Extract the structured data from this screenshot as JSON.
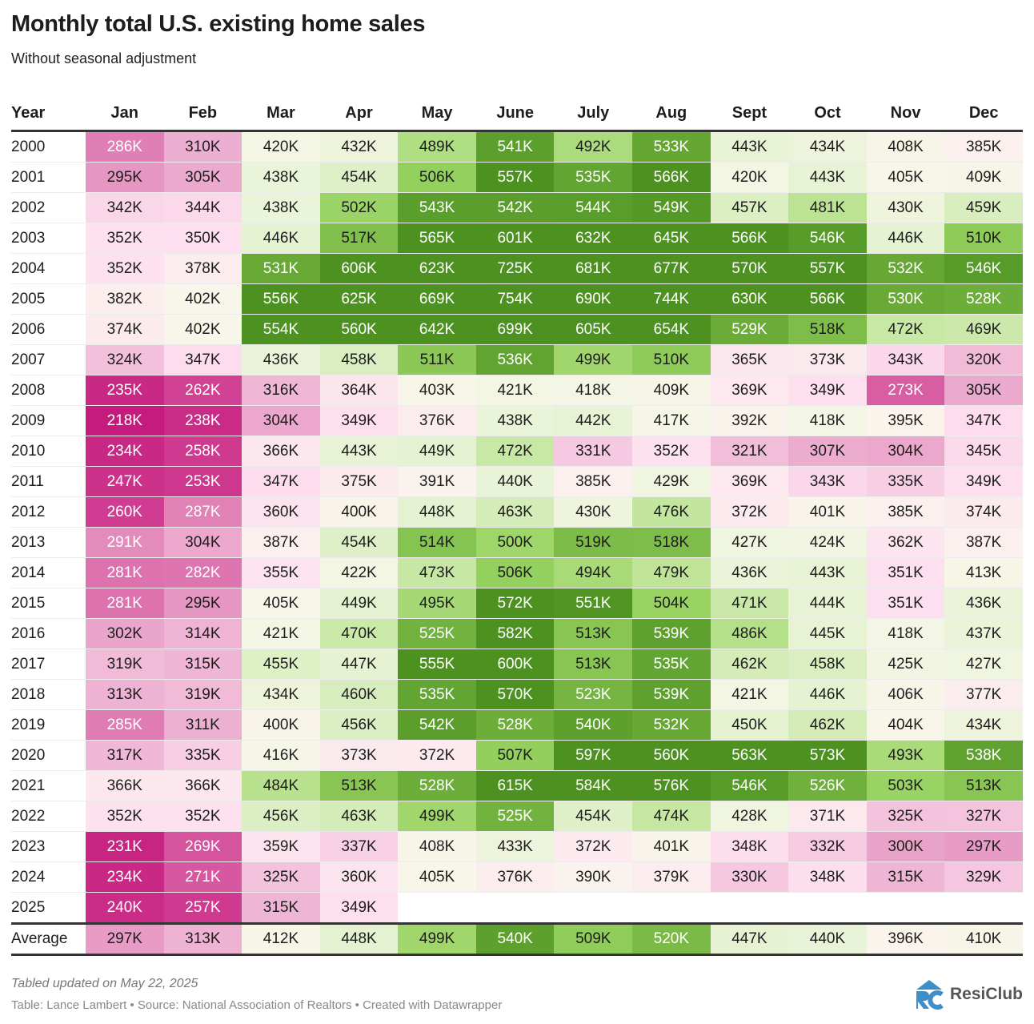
{
  "title": "Monthly total U.S. existing home sales",
  "subtitle": "Without seasonal adjustment",
  "footer": {
    "note": "Tabled updated on May 22, 2025",
    "credit": "Table: Lance Lambert • Source: National Association of Realtors • Created with Datawrapper"
  },
  "logo": {
    "text": "ResiClub",
    "color": "#3d8ec9"
  },
  "colors": {
    "low": "#c51b7d",
    "mid": "#f7f5ec",
    "high": "#4d9221"
  },
  "chart_data": {
    "type": "table",
    "title": "Monthly total U.S. existing home sales",
    "subtitle": "Without seasonal adjustment",
    "columns": [
      "Year",
      "Jan",
      "Feb",
      "Mar",
      "Apr",
      "May",
      "June",
      "July",
      "Aug",
      "Sept",
      "Oct",
      "Nov",
      "Dec"
    ],
    "rows": [
      [
        "2000",
        "286K",
        "310K",
        "420K",
        "432K",
        "489K",
        "541K",
        "492K",
        "533K",
        "443K",
        "434K",
        "408K",
        "385K"
      ],
      [
        "2001",
        "295K",
        "305K",
        "438K",
        "454K",
        "506K",
        "557K",
        "535K",
        "566K",
        "420K",
        "443K",
        "405K",
        "409K"
      ],
      [
        "2002",
        "342K",
        "344K",
        "438K",
        "502K",
        "543K",
        "542K",
        "544K",
        "549K",
        "457K",
        "481K",
        "430K",
        "459K"
      ],
      [
        "2003",
        "352K",
        "350K",
        "446K",
        "517K",
        "565K",
        "601K",
        "632K",
        "645K",
        "566K",
        "546K",
        "446K",
        "510K"
      ],
      [
        "2004",
        "352K",
        "378K",
        "531K",
        "606K",
        "623K",
        "725K",
        "681K",
        "677K",
        "570K",
        "557K",
        "532K",
        "546K"
      ],
      [
        "2005",
        "382K",
        "402K",
        "556K",
        "625K",
        "669K",
        "754K",
        "690K",
        "744K",
        "630K",
        "566K",
        "530K",
        "528K"
      ],
      [
        "2006",
        "374K",
        "402K",
        "554K",
        "560K",
        "642K",
        "699K",
        "605K",
        "654K",
        "529K",
        "518K",
        "472K",
        "469K"
      ],
      [
        "2007",
        "324K",
        "347K",
        "436K",
        "458K",
        "511K",
        "536K",
        "499K",
        "510K",
        "365K",
        "373K",
        "343K",
        "320K"
      ],
      [
        "2008",
        "235K",
        "262K",
        "316K",
        "364K",
        "403K",
        "421K",
        "418K",
        "409K",
        "369K",
        "349K",
        "273K",
        "305K"
      ],
      [
        "2009",
        "218K",
        "238K",
        "304K",
        "349K",
        "376K",
        "438K",
        "442K",
        "417K",
        "392K",
        "418K",
        "395K",
        "347K"
      ],
      [
        "2010",
        "234K",
        "258K",
        "366K",
        "443K",
        "449K",
        "472K",
        "331K",
        "352K",
        "321K",
        "307K",
        "304K",
        "345K"
      ],
      [
        "2011",
        "247K",
        "253K",
        "347K",
        "375K",
        "391K",
        "440K",
        "385K",
        "429K",
        "369K",
        "343K",
        "335K",
        "349K"
      ],
      [
        "2012",
        "260K",
        "287K",
        "360K",
        "400K",
        "448K",
        "463K",
        "430K",
        "476K",
        "372K",
        "401K",
        "385K",
        "374K"
      ],
      [
        "2013",
        "291K",
        "304K",
        "387K",
        "454K",
        "514K",
        "500K",
        "519K",
        "518K",
        "427K",
        "424K",
        "362K",
        "387K"
      ],
      [
        "2014",
        "281K",
        "282K",
        "355K",
        "422K",
        "473K",
        "506K",
        "494K",
        "479K",
        "436K",
        "443K",
        "351K",
        "413K"
      ],
      [
        "2015",
        "281K",
        "295K",
        "405K",
        "449K",
        "495K",
        "572K",
        "551K",
        "504K",
        "471K",
        "444K",
        "351K",
        "436K"
      ],
      [
        "2016",
        "302K",
        "314K",
        "421K",
        "470K",
        "525K",
        "582K",
        "513K",
        "539K",
        "486K",
        "445K",
        "418K",
        "437K"
      ],
      [
        "2017",
        "319K",
        "315K",
        "455K",
        "447K",
        "555K",
        "600K",
        "513K",
        "535K",
        "462K",
        "458K",
        "425K",
        "427K"
      ],
      [
        "2018",
        "313K",
        "319K",
        "434K",
        "460K",
        "535K",
        "570K",
        "523K",
        "539K",
        "421K",
        "446K",
        "406K",
        "377K"
      ],
      [
        "2019",
        "285K",
        "311K",
        "400K",
        "456K",
        "542K",
        "528K",
        "540K",
        "532K",
        "450K",
        "462K",
        "404K",
        "434K"
      ],
      [
        "2020",
        "317K",
        "335K",
        "416K",
        "373K",
        "372K",
        "507K",
        "597K",
        "560K",
        "563K",
        "573K",
        "493K",
        "538K"
      ],
      [
        "2021",
        "366K",
        "366K",
        "484K",
        "513K",
        "528K",
        "615K",
        "584K",
        "576K",
        "546K",
        "526K",
        "503K",
        "513K"
      ],
      [
        "2022",
        "352K",
        "352K",
        "456K",
        "463K",
        "499K",
        "525K",
        "454K",
        "474K",
        "428K",
        "371K",
        "325K",
        "327K"
      ],
      [
        "2023",
        "231K",
        "269K",
        "359K",
        "337K",
        "408K",
        "433K",
        "372K",
        "401K",
        "348K",
        "332K",
        "300K",
        "297K"
      ],
      [
        "2024",
        "234K",
        "271K",
        "325K",
        "360K",
        "405K",
        "376K",
        "390K",
        "379K",
        "330K",
        "348K",
        "315K",
        "329K"
      ],
      [
        "2025",
        "240K",
        "257K",
        "315K",
        "349K",
        "",
        "",
        "",
        "",
        "",
        "",
        "",
        ""
      ]
    ],
    "average": [
      "Average",
      "297K",
      "313K",
      "412K",
      "448K",
      "499K",
      "540K",
      "509K",
      "520K",
      "447K",
      "440K",
      "396K",
      "410K"
    ]
  }
}
